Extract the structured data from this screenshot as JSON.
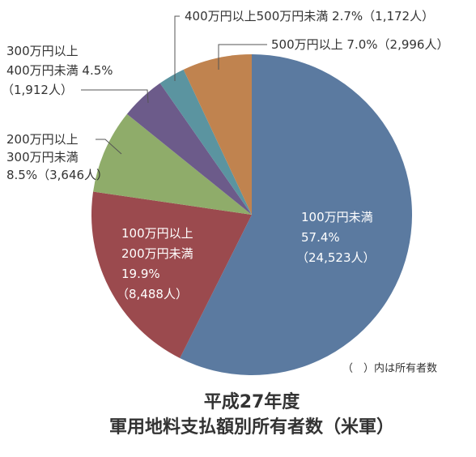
{
  "chart_data": {
    "type": "pie",
    "title": "平成27年度",
    "subtitle": "軍用地料支払額別所有者数（米軍）",
    "note": "（　）内は所有者数",
    "categories": [
      [
        "100万円未満"
      ],
      [
        "100万円以上",
        "200万円未満"
      ],
      [
        "200万円以上",
        "300万円未満"
      ],
      [
        "300万円以上",
        "400万円未満"
      ],
      [
        "400万円以上500万円未満"
      ],
      [
        "500万円以上"
      ]
    ],
    "values": [
      57.4,
      19.9,
      8.5,
      4.5,
      2.7,
      7.0
    ],
    "value_labels": [
      "57.4%",
      "19.9%",
      "8.5%",
      "4.5%",
      "2.7%",
      "7.0%"
    ],
    "counts": [
      24523,
      8488,
      3646,
      1912,
      1172,
      2996
    ],
    "count_labels": [
      "（24,523人）",
      "（8,488人）",
      "（3,646人）",
      "（1,912人）",
      "（1,172人）",
      "（2,996人）"
    ],
    "colors": [
      "#5b7aa0",
      "#9b4a4e",
      "#8fac6a",
      "#6c5b8a",
      "#5b94a0",
      "#c0834f"
    ]
  }
}
